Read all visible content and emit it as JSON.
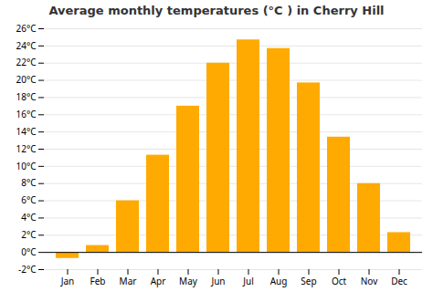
{
  "chart_data": {
    "type": "bar",
    "title": "Average monthly temperatures (°C ) in Cherry Hill",
    "categories": [
      "Jan",
      "Feb",
      "Mar",
      "Apr",
      "May",
      "Jun",
      "Jul",
      "Aug",
      "Sep",
      "Oct",
      "Nov",
      "Dec"
    ],
    "values": [
      -0.7,
      0.8,
      6.0,
      11.3,
      17.0,
      22.0,
      24.7,
      23.7,
      19.7,
      13.4,
      8.0,
      2.3
    ],
    "color": "#FFAA00",
    "ylim": [
      -2,
      26
    ],
    "yticks": [
      {
        "value": -2,
        "label": "-2°C"
      },
      {
        "value": 0,
        "label": "0°C"
      },
      {
        "value": 2,
        "label": "2°C"
      },
      {
        "value": 4,
        "label": "4°C"
      },
      {
        "value": 6,
        "label": "6°C"
      },
      {
        "value": 8,
        "label": "8°C"
      },
      {
        "value": 10,
        "label": "10°C"
      },
      {
        "value": 12,
        "label": "12°C"
      },
      {
        "value": 14,
        "label": "14°C"
      },
      {
        "value": 16,
        "label": "16°C"
      },
      {
        "value": 18,
        "label": "18°C"
      },
      {
        "value": 20,
        "label": "20°C"
      },
      {
        "value": 22,
        "label": "22°C"
      },
      {
        "value": 24,
        "label": "24°C"
      },
      {
        "value": 26,
        "label": "26°C"
      }
    ],
    "grid": true
  }
}
